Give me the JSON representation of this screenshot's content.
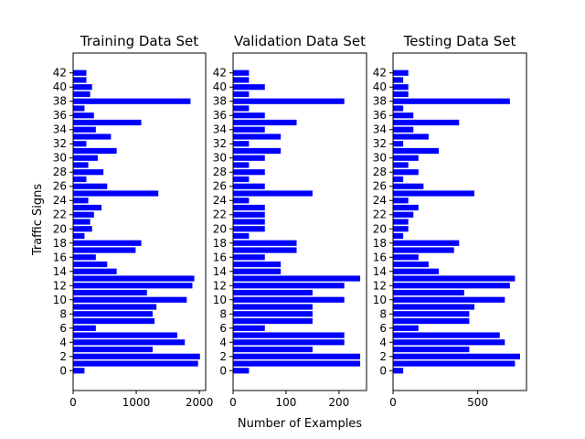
{
  "figure": {
    "ylabel": "Traffic Signs",
    "xlabel": "Number of Examples"
  },
  "style": {
    "bar_color": "#0000ff",
    "axis_color": "#000000",
    "background": "#ffffff"
  },
  "chart_data": [
    {
      "type": "bar",
      "orientation": "horizontal",
      "title": "Training Data Set",
      "ylabel": "Traffic Signs",
      "xlabel": "",
      "categories": [
        0,
        1,
        2,
        3,
        4,
        5,
        6,
        7,
        8,
        9,
        10,
        11,
        12,
        13,
        14,
        15,
        16,
        17,
        18,
        19,
        20,
        21,
        22,
        23,
        24,
        25,
        26,
        27,
        28,
        29,
        30,
        31,
        32,
        33,
        34,
        35,
        36,
        37,
        38,
        39,
        40,
        41,
        42
      ],
      "values": [
        180,
        1980,
        2010,
        1260,
        1770,
        1650,
        360,
        1290,
        1260,
        1320,
        1800,
        1170,
        1890,
        1920,
        690,
        540,
        360,
        990,
        1080,
        180,
        300,
        270,
        330,
        450,
        240,
        1350,
        540,
        210,
        480,
        240,
        390,
        690,
        210,
        599,
        360,
        1080,
        330,
        180,
        1860,
        270,
        300,
        210,
        210
      ],
      "xlim": [
        0,
        2100
      ],
      "xticks": [
        0,
        1000,
        2000
      ],
      "xtick_labels": [
        "0",
        "1000",
        "2000"
      ],
      "ylim": [
        -2.8,
        44.8
      ],
      "yticks": [
        0,
        2,
        4,
        6,
        8,
        10,
        12,
        14,
        16,
        18,
        20,
        22,
        24,
        26,
        28,
        30,
        32,
        34,
        36,
        38,
        40,
        42
      ],
      "ytick_labels": [
        "0",
        "2",
        "4",
        "6",
        "8",
        "10",
        "12",
        "14",
        "16",
        "18",
        "20",
        "22",
        "24",
        "26",
        "28",
        "30",
        "32",
        "34",
        "36",
        "38",
        "40",
        "42"
      ],
      "grid": false,
      "legend": "none"
    },
    {
      "type": "bar",
      "orientation": "horizontal",
      "title": "Validation Data Set",
      "ylabel": "",
      "xlabel": "Number of Examples",
      "categories": [
        0,
        1,
        2,
        3,
        4,
        5,
        6,
        7,
        8,
        9,
        10,
        11,
        12,
        13,
        14,
        15,
        16,
        17,
        18,
        19,
        20,
        21,
        22,
        23,
        24,
        25,
        26,
        27,
        28,
        29,
        30,
        31,
        32,
        33,
        34,
        35,
        36,
        37,
        38,
        39,
        40,
        41,
        42
      ],
      "values": [
        30,
        240,
        240,
        150,
        210,
        210,
        60,
        150,
        150,
        150,
        210,
        150,
        210,
        240,
        90,
        90,
        60,
        120,
        120,
        30,
        60,
        60,
        60,
        60,
        30,
        150,
        60,
        30,
        60,
        30,
        60,
        90,
        30,
        90,
        60,
        120,
        60,
        30,
        210,
        30,
        60,
        30,
        30
      ],
      "xlim": [
        0,
        252
      ],
      "xticks": [
        0,
        100,
        200
      ],
      "xtick_labels": [
        "0",
        "100",
        "200"
      ],
      "ylim": [
        -2.8,
        44.8
      ],
      "yticks": [
        0,
        2,
        4,
        6,
        8,
        10,
        12,
        14,
        16,
        18,
        20,
        22,
        24,
        26,
        28,
        30,
        32,
        34,
        36,
        38,
        40,
        42
      ],
      "ytick_labels": [
        "0",
        "2",
        "4",
        "6",
        "8",
        "10",
        "12",
        "14",
        "16",
        "18",
        "20",
        "22",
        "24",
        "26",
        "28",
        "30",
        "32",
        "34",
        "36",
        "38",
        "40",
        "42"
      ],
      "grid": false,
      "legend": "none"
    },
    {
      "type": "bar",
      "orientation": "horizontal",
      "title": "Testing Data Set",
      "ylabel": "",
      "xlabel": "",
      "categories": [
        0,
        1,
        2,
        3,
        4,
        5,
        6,
        7,
        8,
        9,
        10,
        11,
        12,
        13,
        14,
        15,
        16,
        17,
        18,
        19,
        20,
        21,
        22,
        23,
        24,
        25,
        26,
        27,
        28,
        29,
        30,
        31,
        32,
        33,
        34,
        35,
        36,
        37,
        38,
        39,
        40,
        41,
        42
      ],
      "values": [
        60,
        720,
        750,
        450,
        660,
        630,
        150,
        450,
        450,
        480,
        660,
        420,
        690,
        720,
        270,
        210,
        150,
        360,
        390,
        60,
        90,
        90,
        120,
        150,
        90,
        480,
        180,
        60,
        150,
        90,
        150,
        270,
        60,
        210,
        120,
        390,
        120,
        60,
        690,
        90,
        90,
        60,
        90
      ],
      "xlim": [
        0,
        788
      ],
      "xticks": [
        0,
        500
      ],
      "xtick_labels": [
        "0",
        "500"
      ],
      "ylim": [
        -2.8,
        44.8
      ],
      "yticks": [
        0,
        2,
        4,
        6,
        8,
        10,
        12,
        14,
        16,
        18,
        20,
        22,
        24,
        26,
        28,
        30,
        32,
        34,
        36,
        38,
        40,
        42
      ],
      "ytick_labels": [
        "0",
        "2",
        "4",
        "6",
        "8",
        "10",
        "12",
        "14",
        "16",
        "18",
        "20",
        "22",
        "24",
        "26",
        "28",
        "30",
        "32",
        "34",
        "36",
        "38",
        "40",
        "42"
      ],
      "grid": false,
      "legend": "none"
    }
  ]
}
